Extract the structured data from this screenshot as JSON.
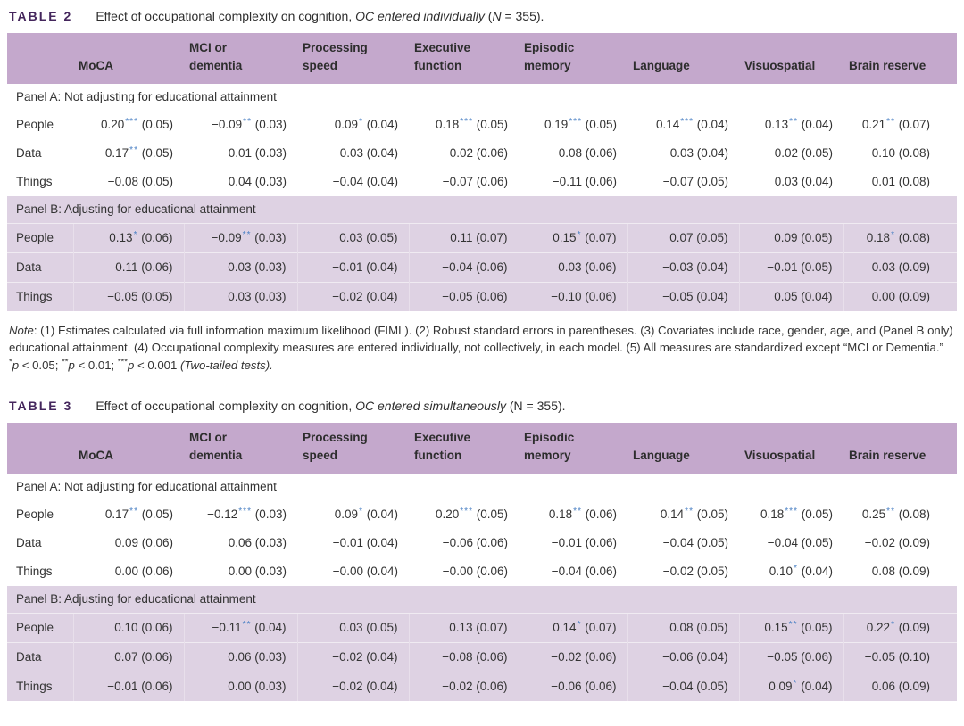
{
  "colors": {
    "header_band": "#c4a8cc",
    "panel_b_band": "#ded2e3",
    "table_label": "#44265c",
    "star_blue": "#4a80c4",
    "body_text": "#333333"
  },
  "tables": [
    {
      "label": "TABLE 2",
      "caption": [
        {
          "t": "Effect of occupational complexity on cognition, "
        },
        {
          "t": "OC entered individually",
          "i": true
        },
        {
          "t": " ("
        },
        {
          "t": "N",
          "i": true
        },
        {
          "t": " = 355)."
        }
      ],
      "columns": [
        {
          "lines": [
            ""
          ]
        },
        {
          "lines": [
            "MoCA"
          ]
        },
        {
          "lines": [
            "MCI or",
            "dementia"
          ]
        },
        {
          "lines": [
            "Processing",
            "speed"
          ]
        },
        {
          "lines": [
            "Executive",
            "function"
          ]
        },
        {
          "lines": [
            "Episodic",
            "memory"
          ]
        },
        {
          "lines": [
            "Language"
          ]
        },
        {
          "lines": [
            "Visuospatial"
          ]
        },
        {
          "lines": [
            "Brain reserve"
          ]
        }
      ],
      "panels": [
        {
          "label": "Panel A: Not adjusting for educational attainment",
          "shaded": false,
          "rows": [
            {
              "label": "People",
              "cells": [
                "0.20*** (0.05)",
                "−0.09** (0.03)",
                "0.09* (0.04)",
                "0.18*** (0.05)",
                "0.19*** (0.05)",
                "0.14*** (0.04)",
                "0.13** (0.04)",
                "0.21** (0.07)"
              ]
            },
            {
              "label": "Data",
              "cells": [
                "0.17** (0.05)",
                "0.01 (0.03)",
                "0.03 (0.04)",
                "0.02 (0.06)",
                "0.08 (0.06)",
                "0.03 (0.04)",
                "0.02 (0.05)",
                "0.10 (0.08)"
              ]
            },
            {
              "label": "Things",
              "cells": [
                "−0.08 (0.05)",
                "0.04 (0.03)",
                "−0.04 (0.04)",
                "−0.07 (0.06)",
                "−0.11 (0.06)",
                "−0.07 (0.05)",
                "0.03 (0.04)",
                "0.01 (0.08)"
              ]
            }
          ]
        },
        {
          "label": "Panel B: Adjusting for educational attainment",
          "shaded": true,
          "rows": [
            {
              "label": "People",
              "cells": [
                "0.13* (0.06)",
                "−0.09** (0.03)",
                "0.03 (0.05)",
                "0.11 (0.07)",
                "0.15* (0.07)",
                "0.07 (0.05)",
                "0.09 (0.05)",
                "0.18* (0.08)"
              ]
            },
            {
              "label": "Data",
              "cells": [
                "0.11 (0.06)",
                "0.03 (0.03)",
                "−0.01 (0.04)",
                "−0.04 (0.06)",
                "0.03 (0.06)",
                "−0.03 (0.04)",
                "−0.01 (0.05)",
                "0.03 (0.09)"
              ]
            },
            {
              "label": "Things",
              "cells": [
                "−0.05 (0.05)",
                "0.03 (0.03)",
                "−0.02 (0.04)",
                "−0.05 (0.06)",
                "−0.10 (0.06)",
                "−0.05 (0.04)",
                "0.05 (0.04)",
                "0.00 (0.09)"
              ]
            }
          ]
        }
      ],
      "note": [
        {
          "t": "Note",
          "i": true
        },
        {
          "t": ": (1) Estimates calculated via full information maximum likelihood (FIML). (2) Robust standard errors in parentheses. (3) Covariates include race, gender, age, and (Panel B only) educational attainment. (4) Occupational complexity measures are entered individually, not collectively, in each model. (5) All measures are standardized except “MCI or Dementia.”"
        }
      ],
      "sig": [
        {
          "t": "*",
          "sup": true
        },
        {
          "t": "p",
          "i": true
        },
        {
          "t": " < 0.05; "
        },
        {
          "t": "**",
          "sup": true
        },
        {
          "t": "p",
          "i": true
        },
        {
          "t": " < 0.01; "
        },
        {
          "t": "***",
          "sup": true
        },
        {
          "t": "p",
          "i": true
        },
        {
          "t": " < 0.001 "
        },
        {
          "t": "(Two-tailed tests).",
          "i": true
        }
      ]
    },
    {
      "label": "TABLE 3",
      "caption": [
        {
          "t": "Effect of occupational complexity on cognition, "
        },
        {
          "t": "OC entered simultaneously",
          "i": true
        },
        {
          "t": " (N = 355)."
        }
      ],
      "columns": [
        {
          "lines": [
            ""
          ]
        },
        {
          "lines": [
            "MoCA"
          ]
        },
        {
          "lines": [
            "MCI or",
            "dementia"
          ]
        },
        {
          "lines": [
            "Processing",
            "speed"
          ]
        },
        {
          "lines": [
            "Executive",
            "function"
          ]
        },
        {
          "lines": [
            "Episodic",
            "memory"
          ]
        },
        {
          "lines": [
            "Language"
          ]
        },
        {
          "lines": [
            "Visuospatial"
          ]
        },
        {
          "lines": [
            "Brain reserve"
          ]
        }
      ],
      "panels": [
        {
          "label": "Panel A: Not adjusting for educational attainment",
          "shaded": false,
          "rows": [
            {
              "label": "People",
              "cells": [
                "0.17** (0.05)",
                "−0.12*** (0.03)",
                "0.09* (0.04)",
                "0.20*** (0.05)",
                "0.18** (0.06)",
                "0.14** (0.05)",
                "0.18*** (0.05)",
                "0.25** (0.08)"
              ]
            },
            {
              "label": "Data",
              "cells": [
                "0.09 (0.06)",
                "0.06 (0.03)",
                "−0.01 (0.04)",
                "−0.06 (0.06)",
                "−0.01 (0.06)",
                "−0.04 (0.05)",
                "−0.04 (0.05)",
                "−0.02 (0.09)"
              ]
            },
            {
              "label": "Things",
              "cells": [
                "0.00 (0.06)",
                "0.00 (0.03)",
                "−0.00 (0.04)",
                "−0.00 (0.06)",
                "−0.04 (0.06)",
                "−0.02 (0.05)",
                "0.10* (0.04)",
                "0.08 (0.09)"
              ]
            }
          ]
        },
        {
          "label": "Panel B: Adjusting for educational attainment",
          "shaded": true,
          "rows": [
            {
              "label": "People",
              "cells": [
                "0.10 (0.06)",
                "−0.11** (0.04)",
                "0.03 (0.05)",
                "0.13 (0.07)",
                "0.14* (0.07)",
                "0.08 (0.05)",
                "0.15** (0.05)",
                "0.22* (0.09)"
              ]
            },
            {
              "label": "Data",
              "cells": [
                "0.07 (0.06)",
                "0.06 (0.03)",
                "−0.02 (0.04)",
                "−0.08 (0.06)",
                "−0.02 (0.06)",
                "−0.06 (0.04)",
                "−0.05 (0.06)",
                "−0.05 (0.10)"
              ]
            },
            {
              "label": "Things",
              "cells": [
                "−0.01 (0.06)",
                "0.00 (0.03)",
                "−0.02 (0.04)",
                "−0.02 (0.06)",
                "−0.06 (0.06)",
                "−0.04 (0.05)",
                "0.09* (0.04)",
                "0.06 (0.09)"
              ]
            }
          ]
        }
      ],
      "note": null,
      "sig": null
    }
  ]
}
